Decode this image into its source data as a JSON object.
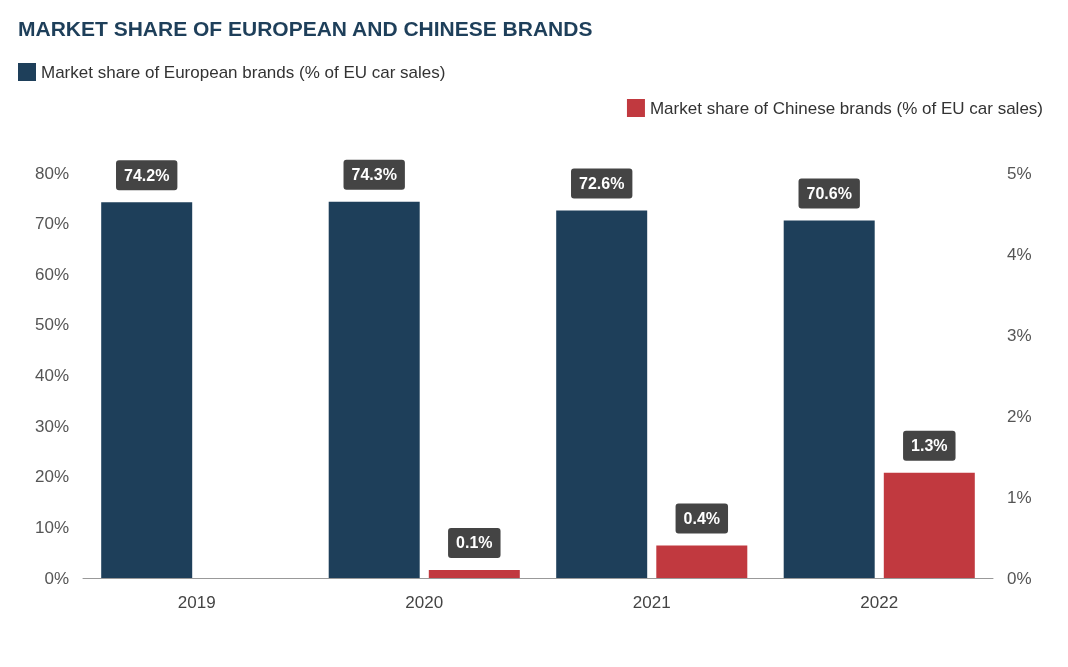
{
  "chart_data": {
    "type": "bar",
    "title": "MARKET SHARE OF EUROPEAN AND CHINESE BRANDS",
    "categories": [
      "2019",
      "2020",
      "2021",
      "2022"
    ],
    "series": [
      {
        "name": "Market share of European brands (% of EU car sales)",
        "color": "#1e3f5a",
        "values": [
          74.2,
          74.3,
          72.6,
          70.6
        ],
        "value_labels": [
          "74.2%",
          "74.3%",
          "72.6%",
          "70.6%"
        ]
      },
      {
        "name": "Market share of Chinese brands (% of EU car sales)",
        "color": "#c1393f",
        "axis": "y2",
        "values": [
          null,
          0.1,
          0.4,
          1.3
        ],
        "value_labels": [
          null,
          "0.1%",
          "0.4%",
          "1.3%"
        ]
      }
    ],
    "ylim": [
      0,
      80
    ],
    "yticks": [
      {
        "value": 0,
        "label": "0%"
      },
      {
        "value": 10,
        "label": "10%"
      },
      {
        "value": 20,
        "label": "20%"
      },
      {
        "value": 30,
        "label": "30%"
      },
      {
        "value": 40,
        "label": "40%"
      },
      {
        "value": 50,
        "label": "50%"
      },
      {
        "value": 60,
        "label": "60%"
      },
      {
        "value": 70,
        "label": "70%"
      },
      {
        "value": 80,
        "label": "80%"
      }
    ],
    "y2lim": [
      0,
      5
    ],
    "y2ticks": [
      {
        "value": 0,
        "label": "0%"
      },
      {
        "value": 1,
        "label": "1%"
      },
      {
        "value": 2,
        "label": "2%"
      },
      {
        "value": 3,
        "label": "3%"
      },
      {
        "value": 4,
        "label": "4%"
      },
      {
        "value": 5,
        "label": "5%"
      }
    ],
    "legend": "top",
    "grid": false
  }
}
